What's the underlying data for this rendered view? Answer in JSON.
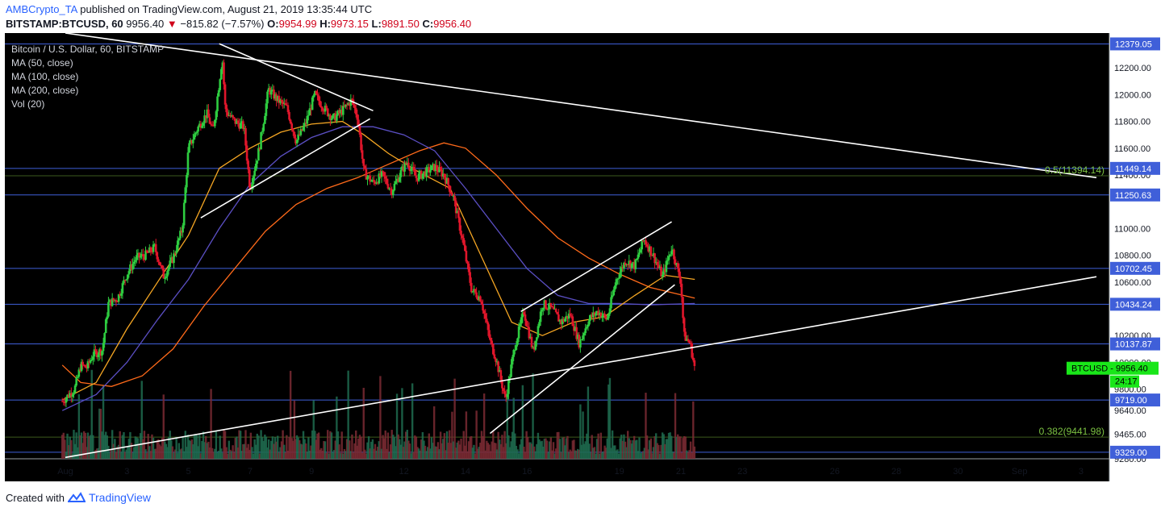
{
  "header": {
    "author": "AMBCrypto_TA",
    "published": "published on TradingView.com, August 21, 2019 13:35:44 UTC",
    "symbol": "BITSTAMP:BTCUSD, 60",
    "last": "9956.40",
    "change_arrow": "▼",
    "change": "−815.82 (−7.57%)",
    "o_label": "O:",
    "o_value": "9954.99",
    "h_label": "H:",
    "h_value": "9973.15",
    "l_label": "L:",
    "l_value": "9891.50",
    "c_label": "C:",
    "c_value": "9956.40"
  },
  "legend": {
    "title": "Bitcoin / U.S. Dollar, 60, BITSTAMP",
    "ma50": "MA (50, close)",
    "ma100": "MA (100, close)",
    "ma200": "MA (200, close)",
    "vol": "Vol (20)"
  },
  "footer": {
    "created": "Created with",
    "brand": "TradingView"
  },
  "colors": {
    "background": "#000000",
    "up": "#2ecc40",
    "down": "#e0162b",
    "ma50": "#f5a623",
    "ma100": "#5b4fc4",
    "ma200": "#ff6a1a",
    "hline": "#3f5fd9",
    "fib": "#7cc242",
    "trendline": "#ffffff",
    "price_badge": "#19e619"
  },
  "chart_data": {
    "type": "candlestick",
    "title": "Bitcoin / U.S. Dollar, 60, BITSTAMP",
    "ylim": [
      9280,
      12460
    ],
    "y_ticks": [
      12200,
      12000,
      11800,
      11600,
      11400,
      11000,
      10800,
      10600,
      10200,
      10000,
      9800,
      9640,
      9465,
      9280
    ],
    "x_ticks": [
      "Aug",
      "3",
      "5",
      "7",
      "9",
      "12",
      "14",
      "16",
      "19",
      "21",
      "23",
      "26",
      "28",
      "30",
      "Sep",
      "3"
    ],
    "x_tick_days": [
      1,
      3,
      5,
      7,
      9,
      12,
      14,
      16,
      19,
      21,
      23,
      26,
      28,
      30,
      32,
      34
    ],
    "horizontal_levels": [
      {
        "label": "12379.05",
        "value": 12379.05
      },
      {
        "label": "11449.14",
        "value": 11449.14
      },
      {
        "label": "11250.63",
        "value": 11250.63
      },
      {
        "label": "10702.45",
        "value": 10702.45
      },
      {
        "label": "10434.24",
        "value": 10434.24
      },
      {
        "label": "10137.87",
        "value": 10137.87
      },
      {
        "label": "9719.00",
        "value": 9719.0
      },
      {
        "label": "9329.00",
        "value": 9329.0
      }
    ],
    "fib_levels": [
      {
        "label": "0.5(11394.14)",
        "value": 11394.14
      },
      {
        "label": "0.382(9441.98)",
        "value": 9441.98
      }
    ],
    "price_series": [
      {
        "day": 0.9,
        "price": 9710
      },
      {
        "day": 1.3,
        "price": 9800
      },
      {
        "day": 1.5,
        "price": 9980
      },
      {
        "day": 1.7,
        "price": 9960
      },
      {
        "day": 1.9,
        "price": 10060
      },
      {
        "day": 2.2,
        "price": 10090
      },
      {
        "day": 2.4,
        "price": 10440
      },
      {
        "day": 2.7,
        "price": 10480
      },
      {
        "day": 3.0,
        "price": 10660
      },
      {
        "day": 3.3,
        "price": 10780
      },
      {
        "day": 3.6,
        "price": 10800
      },
      {
        "day": 3.9,
        "price": 10860
      },
      {
        "day": 4.2,
        "price": 10640
      },
      {
        "day": 4.5,
        "price": 10780
      },
      {
        "day": 4.8,
        "price": 11000
      },
      {
        "day": 5.0,
        "price": 11600
      },
      {
        "day": 5.3,
        "price": 11750
      },
      {
        "day": 5.6,
        "price": 11860
      },
      {
        "day": 5.8,
        "price": 11720
      },
      {
        "day": 6.1,
        "price": 12280
      },
      {
        "day": 6.2,
        "price": 11880
      },
      {
        "day": 6.5,
        "price": 11800
      },
      {
        "day": 6.8,
        "price": 11760
      },
      {
        "day": 7.0,
        "price": 11300
      },
      {
        "day": 7.3,
        "price": 11600
      },
      {
        "day": 7.6,
        "price": 12040
      },
      {
        "day": 7.9,
        "price": 11960
      },
      {
        "day": 8.2,
        "price": 11900
      },
      {
        "day": 8.5,
        "price": 11650
      },
      {
        "day": 8.8,
        "price": 11780
      },
      {
        "day": 9.1,
        "price": 12000
      },
      {
        "day": 9.4,
        "price": 11900
      },
      {
        "day": 9.7,
        "price": 11820
      },
      {
        "day": 10.0,
        "price": 11880
      },
      {
        "day": 10.3,
        "price": 11960
      },
      {
        "day": 10.5,
        "price": 11830
      },
      {
        "day": 10.7,
        "price": 11420
      },
      {
        "day": 11.0,
        "price": 11340
      },
      {
        "day": 11.3,
        "price": 11400
      },
      {
        "day": 11.6,
        "price": 11280
      },
      {
        "day": 11.9,
        "price": 11420
      },
      {
        "day": 12.1,
        "price": 11500
      },
      {
        "day": 12.4,
        "price": 11380
      },
      {
        "day": 12.7,
        "price": 11420
      },
      {
        "day": 13.0,
        "price": 11460
      },
      {
        "day": 13.3,
        "price": 11400
      },
      {
        "day": 13.6,
        "price": 11240
      },
      {
        "day": 13.9,
        "price": 10920
      },
      {
        "day": 14.2,
        "price": 10540
      },
      {
        "day": 14.5,
        "price": 10480
      },
      {
        "day": 14.8,
        "price": 10160
      },
      {
        "day": 15.0,
        "price": 10020
      },
      {
        "day": 15.3,
        "price": 9720
      },
      {
        "day": 15.6,
        "price": 10120
      },
      {
        "day": 15.9,
        "price": 10380
      },
      {
        "day": 16.2,
        "price": 10080
      },
      {
        "day": 16.5,
        "price": 10440
      },
      {
        "day": 16.8,
        "price": 10400
      },
      {
        "day": 17.1,
        "price": 10300
      },
      {
        "day": 17.4,
        "price": 10360
      },
      {
        "day": 17.7,
        "price": 10140
      },
      {
        "day": 18.0,
        "price": 10320
      },
      {
        "day": 18.3,
        "price": 10380
      },
      {
        "day": 18.6,
        "price": 10320
      },
      {
        "day": 18.9,
        "price": 10620
      },
      {
        "day": 19.2,
        "price": 10760
      },
      {
        "day": 19.5,
        "price": 10720
      },
      {
        "day": 19.8,
        "price": 10920
      },
      {
        "day": 20.1,
        "price": 10800
      },
      {
        "day": 20.4,
        "price": 10640
      },
      {
        "day": 20.7,
        "price": 10860
      },
      {
        "day": 21.0,
        "price": 10600
      },
      {
        "day": 21.1,
        "price": 10200
      },
      {
        "day": 21.3,
        "price": 10140
      },
      {
        "day": 21.45,
        "price": 9956
      }
    ],
    "ma50": [
      {
        "day": 0.9,
        "price": 9720
      },
      {
        "day": 2.0,
        "price": 9850
      },
      {
        "day": 3.0,
        "price": 10250
      },
      {
        "day": 4.0,
        "price": 10600
      },
      {
        "day": 5.0,
        "price": 10950
      },
      {
        "day": 6.0,
        "price": 11450
      },
      {
        "day": 7.0,
        "price": 11600
      },
      {
        "day": 8.0,
        "price": 11720
      },
      {
        "day": 9.0,
        "price": 11780
      },
      {
        "day": 10.0,
        "price": 11800
      },
      {
        "day": 10.7,
        "price": 11700
      },
      {
        "day": 11.5,
        "price": 11560
      },
      {
        "day": 12.5,
        "price": 11420
      },
      {
        "day": 13.5,
        "price": 11300
      },
      {
        "day": 14.5,
        "price": 10800
      },
      {
        "day": 15.5,
        "price": 10300
      },
      {
        "day": 16.5,
        "price": 10200
      },
      {
        "day": 17.5,
        "price": 10300
      },
      {
        "day": 18.5,
        "price": 10340
      },
      {
        "day": 19.5,
        "price": 10500
      },
      {
        "day": 20.5,
        "price": 10650
      },
      {
        "day": 21.45,
        "price": 10620
      }
    ],
    "ma100": [
      {
        "day": 0.9,
        "price": 9640
      },
      {
        "day": 2.0,
        "price": 9760
      },
      {
        "day": 3.0,
        "price": 10000
      },
      {
        "day": 4.0,
        "price": 10320
      },
      {
        "day": 5.0,
        "price": 10620
      },
      {
        "day": 6.0,
        "price": 11000
      },
      {
        "day": 7.0,
        "price": 11330
      },
      {
        "day": 8.0,
        "price": 11540
      },
      {
        "day": 9.0,
        "price": 11680
      },
      {
        "day": 10.0,
        "price": 11760
      },
      {
        "day": 11.0,
        "price": 11760
      },
      {
        "day": 12.0,
        "price": 11700
      },
      {
        "day": 13.0,
        "price": 11580
      },
      {
        "day": 14.0,
        "price": 11300
      },
      {
        "day": 15.0,
        "price": 11000
      },
      {
        "day": 16.0,
        "price": 10700
      },
      {
        "day": 17.0,
        "price": 10500
      },
      {
        "day": 18.0,
        "price": 10440
      },
      {
        "day": 19.0,
        "price": 10440
      },
      {
        "day": 20.0,
        "price": 10430
      },
      {
        "day": 21.45,
        "price": 10440
      }
    ],
    "ma200": [
      {
        "day": 0.9,
        "price": 9980
      },
      {
        "day": 1.5,
        "price": 9850
      },
      {
        "day": 2.5,
        "price": 9820
      },
      {
        "day": 3.5,
        "price": 9900
      },
      {
        "day": 4.5,
        "price": 10100
      },
      {
        "day": 5.5,
        "price": 10420
      },
      {
        "day": 6.5,
        "price": 10700
      },
      {
        "day": 7.5,
        "price": 10980
      },
      {
        "day": 8.5,
        "price": 11180
      },
      {
        "day": 9.5,
        "price": 11300
      },
      {
        "day": 10.5,
        "price": 11380
      },
      {
        "day": 11.5,
        "price": 11480
      },
      {
        "day": 12.5,
        "price": 11580
      },
      {
        "day": 13.3,
        "price": 11640
      },
      {
        "day": 14.0,
        "price": 11600
      },
      {
        "day": 15.0,
        "price": 11400
      },
      {
        "day": 16.0,
        "price": 11150
      },
      {
        "day": 17.0,
        "price": 10930
      },
      {
        "day": 18.0,
        "price": 10780
      },
      {
        "day": 19.0,
        "price": 10660
      },
      {
        "day": 20.0,
        "price": 10560
      },
      {
        "day": 21.45,
        "price": 10480
      }
    ],
    "trendlines": [
      {
        "name": "long-descending",
        "from": {
          "day": 1.0,
          "price": 12460
        },
        "to": {
          "day": 34.5,
          "price": 11380
        }
      },
      {
        "name": "long-ascending",
        "from": {
          "day": 1.0,
          "price": 9290
        },
        "to": {
          "day": 34.5,
          "price": 10640
        }
      },
      {
        "name": "upper-wedge-top",
        "from": {
          "day": 6.0,
          "price": 12380
        },
        "to": {
          "day": 11.0,
          "price": 11880
        }
      },
      {
        "name": "upper-wedge-bottom",
        "from": {
          "day": 5.4,
          "price": 11080
        },
        "to": {
          "day": 10.9,
          "price": 11820
        }
      },
      {
        "name": "lower-channel-top",
        "from": {
          "day": 15.8,
          "price": 10380
        },
        "to": {
          "day": 20.7,
          "price": 11050
        }
      },
      {
        "name": "lower-channel-bottom",
        "from": {
          "day": 14.8,
          "price": 9470
        },
        "to": {
          "day": 20.8,
          "price": 10580
        }
      }
    ],
    "last_price": {
      "label": "BTCUSD",
      "value": "9956.40",
      "countdown": "24:17"
    }
  }
}
